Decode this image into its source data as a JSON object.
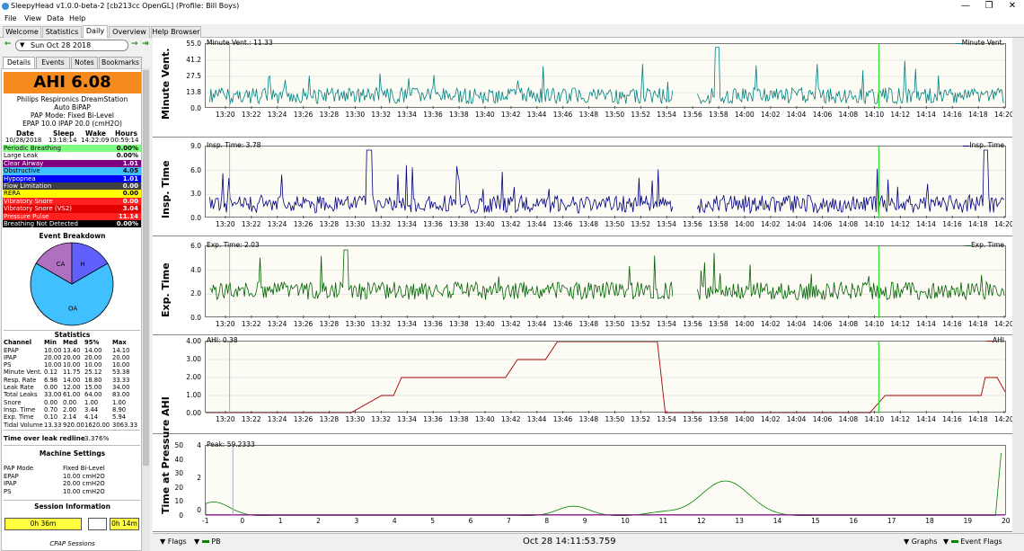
{
  "window": {
    "title": "SleepyHead v1.0.0-beta-2 [cb213cc OpenGL] (Profile: Bill Boys)",
    "min": "—",
    "max": "❐",
    "close": "✕"
  },
  "menu": [
    "File",
    "View",
    "Data",
    "Help"
  ],
  "tabs": [
    "Welcome",
    "Statistics",
    "Daily",
    "Overview",
    "Help Browser"
  ],
  "date_nav": {
    "prev": "←",
    "date": "Sun Oct 28 2018",
    "next": "→",
    "jump": "⇥"
  },
  "subtabs": [
    "Details",
    "Events",
    "Notes",
    "Bookmarks"
  ],
  "ahi": "AHI 6.08",
  "machine": {
    "name": "Philips Respironics DreamStation",
    "mode": "Auto BiPAP",
    "pap_mode": "PAP Mode: Fixed Bi-Level",
    "pressure": "EPAP 10.0 IPAP 20.0 (cmH2O)"
  },
  "times": {
    "headers": [
      "Date",
      "Sleep",
      "Wake",
      "Hours"
    ],
    "values": [
      "10/28/2018",
      "13:18:14",
      "14:22:09",
      "00:59:14"
    ]
  },
  "events": [
    {
      "label": "Periodic Breathing",
      "value": "0.00%",
      "color": "#80ff80",
      "fg": "#000"
    },
    {
      "label": "Large Leak",
      "value": "0.00%",
      "color": "#ffffff",
      "fg": "#000"
    },
    {
      "label": "Clear Airway",
      "value": "1.01",
      "color": "#800080",
      "fg": "#fff"
    },
    {
      "label": "Obstructive",
      "value": "4.05",
      "color": "#40c0ff",
      "fg": "#000"
    },
    {
      "label": "Hypopnea",
      "value": "1.01",
      "color": "#0000ff",
      "fg": "#fff"
    },
    {
      "label": "Flow Limitation",
      "value": "0.00",
      "color": "#404040",
      "fg": "#fff"
    },
    {
      "label": "RERA",
      "value": "0.00",
      "color": "#ffff00",
      "fg": "#000"
    },
    {
      "label": "Vibratory Snore",
      "value": "0.00",
      "color": "#ff2020",
      "fg": "#fff"
    },
    {
      "label": "Vibratory Snore (VS2)",
      "value": "3.04",
      "color": "#e00000",
      "fg": "#fff"
    },
    {
      "label": "Pressure Pulse",
      "value": "11.14",
      "color": "#ff2020",
      "fg": "#fff"
    },
    {
      "label": "Breathing Not Detected",
      "value": "0.00%",
      "color": "#000000",
      "fg": "#fff"
    }
  ],
  "breakdown": {
    "title": "Event Breakdown",
    "slices": [
      {
        "label": "CA",
        "value": 1.01,
        "color": "#b070c0"
      },
      {
        "label": "H",
        "value": 1.01,
        "color": "#6060ff"
      },
      {
        "label": "OA",
        "value": 4.05,
        "color": "#40c0ff"
      }
    ]
  },
  "statistics": {
    "title": "Statistics",
    "headers": [
      "Channel",
      "Min",
      "Med",
      "95%",
      "Max"
    ],
    "rows": [
      [
        "EPAP",
        "10.00",
        "13.40",
        "14.00",
        "14.10"
      ],
      [
        "IPAP",
        "20.00",
        "20.00",
        "20.00",
        "20.00"
      ],
      [
        "PS",
        "10.00",
        "10.00",
        "10.00",
        "10.00"
      ],
      [
        "Minute Vent.",
        "0.12",
        "11.75",
        "25.12",
        "53.38"
      ],
      [
        "Resp. Rate",
        "6.98",
        "14.00",
        "18.80",
        "33.33"
      ],
      [
        "Leak Rate",
        "0.00",
        "12.00",
        "15.00",
        "34.00"
      ],
      [
        "Total Leaks",
        "33.00",
        "61.00",
        "64.00",
        "83.00"
      ],
      [
        "Snore",
        "0.00",
        "0.00",
        "1.00",
        "1.00"
      ],
      [
        "Insp. Time",
        "0.70",
        "2.00",
        "3.44",
        "8.90"
      ],
      [
        "Exp. Time",
        "0.10",
        "2.14",
        "4.14",
        "5.94"
      ],
      [
        "Tidal Volume",
        "13.33",
        "920.00",
        "1620.00",
        "3063.33"
      ]
    ],
    "leak_label": "Time over leak redline",
    "leak_value": "3.376%"
  },
  "machine_settings": {
    "title": "Machine Settings",
    "rows": [
      [
        "PAP Mode",
        "Fixed Bi-Level"
      ],
      [
        "EPAP",
        "10.00 cmH2O"
      ],
      [
        "IPAP",
        "20.00 cmH2O"
      ],
      [
        "PS",
        "10.00 cmH2O"
      ]
    ]
  },
  "session": {
    "title": "Session Information",
    "bar1": "0h 36m",
    "bar2": "0h 14m",
    "caption": "CPAP Sessions"
  },
  "time_ticks": [
    "13:20",
    "13:22",
    "13:24",
    "13:26",
    "13:28",
    "13:30",
    "13:32",
    "13:34",
    "13:36",
    "13:38",
    "13:40",
    "13:42",
    "13:44",
    "13:46",
    "13:48",
    "13:50",
    "13:52",
    "13:54",
    "13:56",
    "13:58",
    "14:00",
    "14:02",
    "14:04",
    "14:06",
    "14:08",
    "14:10",
    "14:12",
    "14:14",
    "14:16",
    "14:18",
    "14:20"
  ],
  "graphs": [
    {
      "title": "Minute Vent.",
      "cursor": "Minute Vent.: 11.33",
      "legend": "Minute Vent.",
      "color": "#008080",
      "yticks": [
        "55.0",
        "41.2",
        "27.5",
        "13.8",
        "0.0"
      ]
    },
    {
      "title": "Insp. Time",
      "cursor": "Insp. Time: 3.78",
      "legend": "Insp. Time",
      "color": "#000080",
      "yticks": [
        "9.0",
        "6.0",
        "3.0",
        "0.0"
      ]
    },
    {
      "title": "Exp. Time",
      "cursor": "Exp. Time: 2.03",
      "legend": "Exp. Time",
      "color": "#006000",
      "yticks": [
        "6.0",
        "4.0",
        "2.0",
        "0.0"
      ]
    },
    {
      "title": "AHI",
      "cursor": "AHI: 0.38",
      "legend": "AHI",
      "color": "#a00000",
      "yticks": [
        "4.00",
        "3.00",
        "2.00",
        "1.00",
        "0.00"
      ]
    },
    {
      "title": "Time at Pressure",
      "cursor": "Peak: 59.2333",
      "legend": "",
      "color": "#008000",
      "yticks": [
        "4",
        "2",
        "0"
      ],
      "yticks_right": [
        "50",
        "40",
        "30",
        "20",
        "10",
        "0"
      ],
      "xticks": [
        "-1",
        "0",
        "1",
        "2",
        "3",
        "4",
        "5",
        "6",
        "7",
        "8",
        "9",
        "10",
        "11",
        "12",
        "13",
        "14",
        "15",
        "16",
        "17",
        "18",
        "19",
        "20"
      ]
    }
  ],
  "bottom": {
    "flags": "Flags",
    "pb": "PB",
    "datetime": "Oct 28 14:11:53.759",
    "graphs": "Graphs",
    "event_flags": "Event Flags"
  }
}
